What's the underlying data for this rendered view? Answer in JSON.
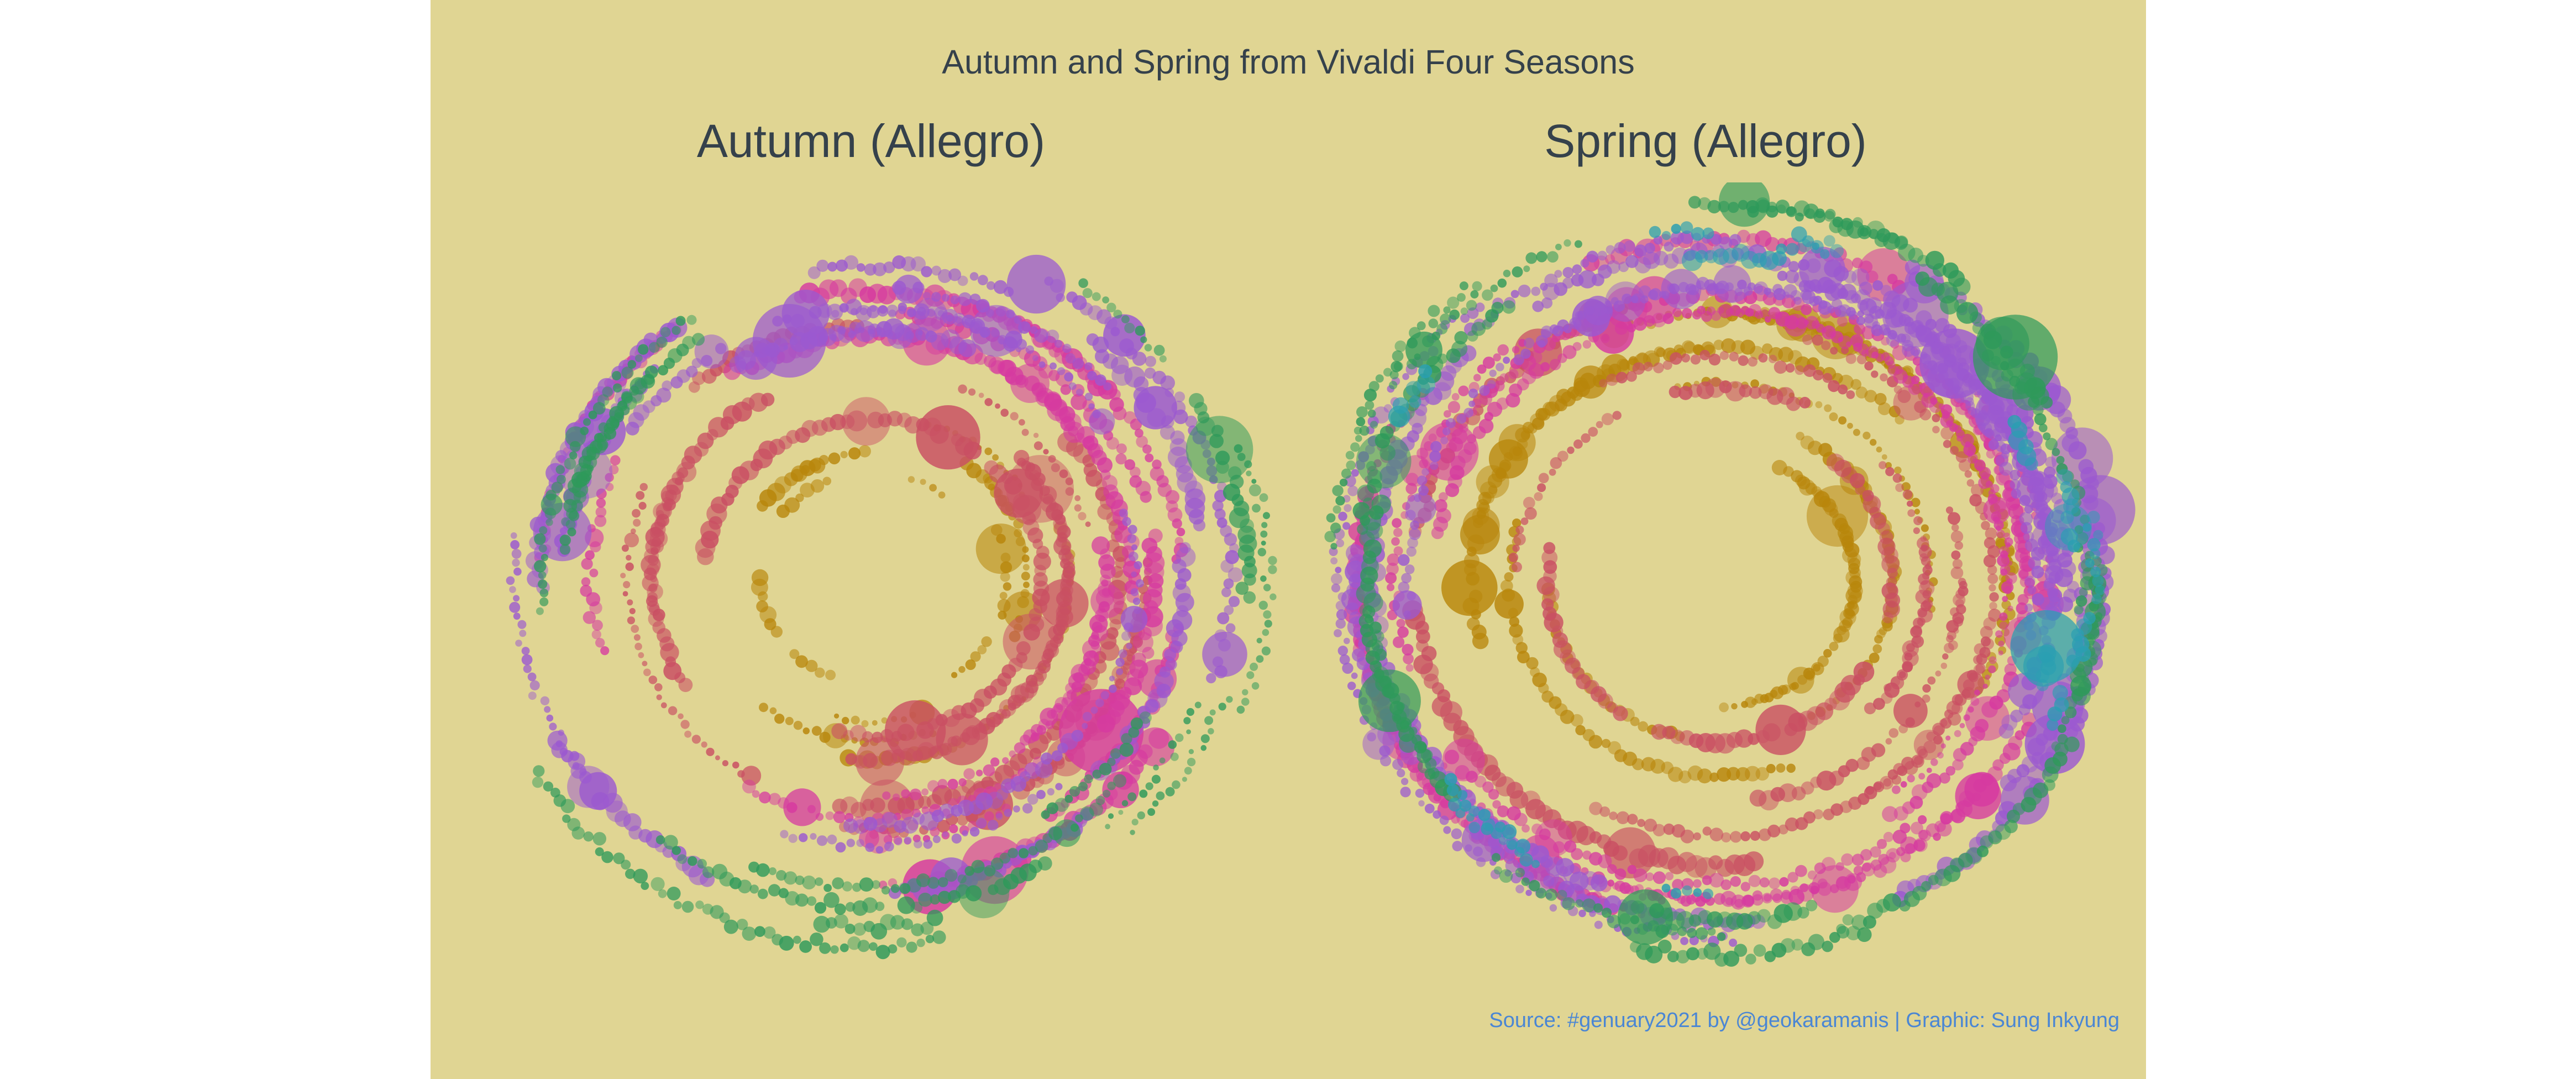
{
  "title": "Autumn and Spring from Vivaldi Four Seasons",
  "caption": "Source: #genuary2021 by @geokaramanis | Graphic: Sung Inkyung",
  "background_color": "#e0d593",
  "text_color": "#35414b",
  "caption_color": "#4a86d4",
  "chart_data": [
    {
      "type": "scatter",
      "coordinate_system": "polar",
      "title": "Autumn (Allegro)",
      "grid": false,
      "legend": "none",
      "palette": [
        "#b8860b",
        "#c94f63",
        "#d63aa0",
        "#9b59d0",
        "#2e9a5a"
      ],
      "ring_groups": [
        {
          "color": "#b8860b",
          "radius_range": [
            0.3,
            0.52
          ],
          "arc_coverage": 0.45
        },
        {
          "color": "#c94f63",
          "radius_range": [
            0.45,
            0.72
          ],
          "arc_coverage": 0.65
        },
        {
          "color": "#d63aa0",
          "radius_range": [
            0.62,
            0.88
          ],
          "arc_coverage": 0.6
        },
        {
          "color": "#9b59d0",
          "radius_range": [
            0.7,
            0.95
          ],
          "arc_coverage": 0.55
        },
        {
          "color": "#2e9a5a",
          "radius_range": [
            0.82,
            1.05
          ],
          "arc_coverage": 0.4
        }
      ]
    },
    {
      "type": "scatter",
      "coordinate_system": "polar",
      "title": "Spring (Allegro)",
      "grid": false,
      "legend": "none",
      "palette": [
        "#b8860b",
        "#c94f63",
        "#d63aa0",
        "#9b59d0",
        "#2e9a5a",
        "#2a9fb2"
      ],
      "ring_groups": [
        {
          "color": "#b8860b",
          "radius_range": [
            0.35,
            0.75
          ],
          "arc_coverage": 0.75
        },
        {
          "color": "#c94f63",
          "radius_range": [
            0.45,
            0.8
          ],
          "arc_coverage": 0.7
        },
        {
          "color": "#d63aa0",
          "radius_range": [
            0.75,
            0.95
          ],
          "arc_coverage": 0.75
        },
        {
          "color": "#9b59d0",
          "radius_range": [
            0.82,
            1.0
          ],
          "arc_coverage": 0.7
        },
        {
          "color": "#2e9a5a",
          "radius_range": [
            0.92,
            1.05
          ],
          "arc_coverage": 0.35
        },
        {
          "color": "#2a9fb2",
          "radius_range": [
            0.88,
            0.98
          ],
          "arc_coverage": 0.1
        }
      ]
    }
  ]
}
